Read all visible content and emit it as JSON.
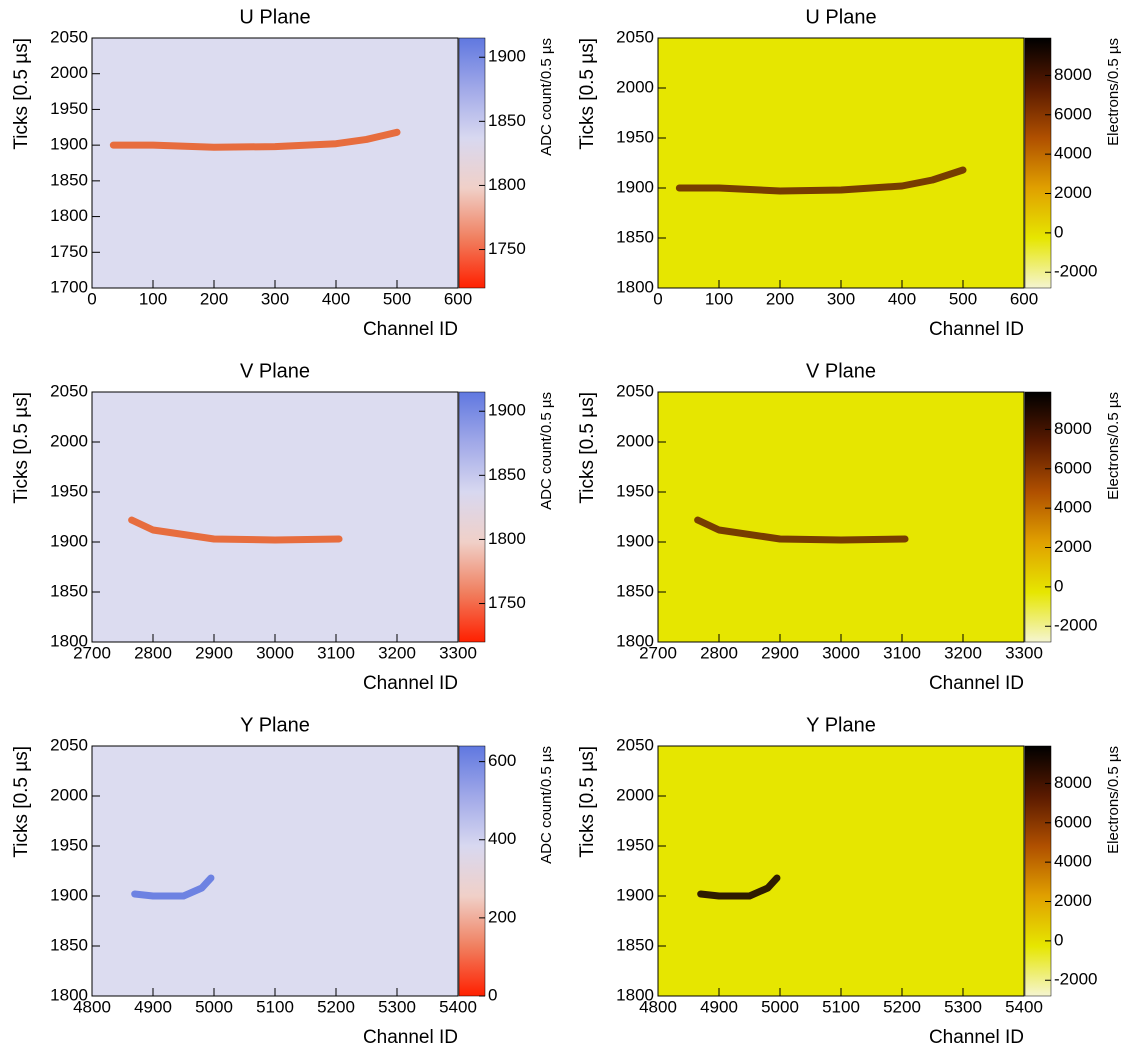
{
  "chart_data": [
    {
      "type": "heatmap",
      "title": "U Plane",
      "xlabel": "Channel ID",
      "ylabel": "Ticks [0.5 µs]",
      "zlabel": "ADC count/0.5 µs",
      "xlim": [
        0,
        600
      ],
      "xticks": [
        0,
        100,
        200,
        300,
        400,
        500,
        600
      ],
      "ylim": [
        1700,
        2050
      ],
      "yticks": [
        1700,
        1750,
        1800,
        1850,
        1900,
        1950,
        2000,
        2050
      ],
      "zlim": [
        1720,
        1915
      ],
      "zticks": [
        1750,
        1800,
        1850,
        1900
      ],
      "colorscale": [
        "#ff2000",
        "#f08060",
        "#f0d0c8",
        "#d8d8f0",
        "#a0a8e8",
        "#6078e0"
      ],
      "background": "#dcdcf0",
      "track": {
        "color": "#e8602a",
        "x": [
          35,
          100,
          200,
          300,
          400,
          450,
          500
        ],
        "y": [
          1900,
          1900,
          1897,
          1898,
          1902,
          1908,
          1918
        ]
      }
    },
    {
      "type": "heatmap",
      "title": "U Plane",
      "xlabel": "Channel ID",
      "ylabel": "Ticks [0.5 µs]",
      "zlabel": "Electrons/0.5 µs",
      "xlim": [
        0,
        600
      ],
      "xticks": [
        0,
        100,
        200,
        300,
        400,
        500,
        600
      ],
      "ylim": [
        1800,
        2050
      ],
      "yticks": [
        1800,
        1850,
        1900,
        1950,
        2000,
        2050
      ],
      "zlim": [
        -2800,
        9900
      ],
      "zticks": [
        -2000,
        0,
        2000,
        4000,
        6000,
        8000
      ],
      "colorscale": [
        "#f5f5d0",
        "#e6e600",
        "#e0a000",
        "#b05000",
        "#5a1a00",
        "#000000"
      ],
      "background": "#e6e600",
      "track": {
        "color": "#6a2a00",
        "x": [
          35,
          100,
          200,
          300,
          400,
          450,
          500
        ],
        "y": [
          1900,
          1900,
          1897,
          1898,
          1902,
          1908,
          1918
        ]
      }
    },
    {
      "type": "heatmap",
      "title": "V Plane",
      "xlabel": "Channel ID",
      "ylabel": "Ticks [0.5 µs]",
      "zlabel": "ADC count/0.5 µs",
      "xlim": [
        2700,
        3300
      ],
      "xticks": [
        2700,
        2800,
        2900,
        3000,
        3100,
        3200,
        3300
      ],
      "ylim": [
        1800,
        2050
      ],
      "yticks": [
        1800,
        1850,
        1900,
        1950,
        2000,
        2050
      ],
      "zlim": [
        1720,
        1915
      ],
      "zticks": [
        1750,
        1800,
        1850,
        1900
      ],
      "colorscale": [
        "#ff2000",
        "#f08060",
        "#f0d0c8",
        "#d8d8f0",
        "#a0a8e8",
        "#6078e0"
      ],
      "background": "#dcdcf0",
      "track": {
        "color": "#e8602a",
        "x": [
          2765,
          2800,
          2900,
          3000,
          3105
        ],
        "y": [
          1922,
          1912,
          1903,
          1902,
          1903
        ]
      }
    },
    {
      "type": "heatmap",
      "title": "V Plane",
      "xlabel": "Channel ID",
      "ylabel": "Ticks [0.5 µs]",
      "zlabel": "Electrons/0.5 µs",
      "xlim": [
        2700,
        3300
      ],
      "xticks": [
        2700,
        2800,
        2900,
        3000,
        3100,
        3200,
        3300
      ],
      "ylim": [
        1800,
        2050
      ],
      "yticks": [
        1800,
        1850,
        1900,
        1950,
        2000,
        2050
      ],
      "zlim": [
        -2800,
        9900
      ],
      "zticks": [
        -2000,
        0,
        2000,
        4000,
        6000,
        8000
      ],
      "colorscale": [
        "#f5f5d0",
        "#e6e600",
        "#e0a000",
        "#b05000",
        "#5a1a00",
        "#000000"
      ],
      "background": "#e6e600",
      "track": {
        "color": "#6a2a00",
        "x": [
          2765,
          2800,
          2900,
          3000,
          3105
        ],
        "y": [
          1922,
          1912,
          1903,
          1902,
          1903
        ]
      }
    },
    {
      "type": "heatmap",
      "title": "Y Plane",
      "xlabel": "Channel ID",
      "ylabel": "Ticks [0.5 µs]",
      "zlabel": "ADC count/0.5 µs",
      "xlim": [
        4800,
        5400
      ],
      "xticks": [
        4800,
        4900,
        5000,
        5100,
        5200,
        5300,
        5400
      ],
      "ylim": [
        1800,
        2050
      ],
      "yticks": [
        1800,
        1850,
        1900,
        1950,
        2000,
        2050
      ],
      "zlim": [
        0,
        640
      ],
      "zticks": [
        0,
        200,
        400,
        600
      ],
      "colorscale": [
        "#ff2000",
        "#f08060",
        "#f0d0c8",
        "#d8d8f0",
        "#a0a8e8",
        "#6078e0"
      ],
      "background": "#dcdcf0",
      "track": {
        "color": "#6078e0",
        "x": [
          4870,
          4900,
          4950,
          4980,
          4995
        ],
        "y": [
          1902,
          1900,
          1900,
          1908,
          1918
        ]
      }
    },
    {
      "type": "heatmap",
      "title": "Y Plane",
      "xlabel": "Channel ID",
      "ylabel": "Ticks [0.5 µs]",
      "zlabel": "Electrons/0.5 µs",
      "xlim": [
        4800,
        5400
      ],
      "xticks": [
        4800,
        4900,
        5000,
        5100,
        5200,
        5300,
        5400
      ],
      "ylim": [
        1800,
        2050
      ],
      "yticks": [
        1800,
        1850,
        1900,
        1950,
        2000,
        2050
      ],
      "zlim": [
        -2800,
        9900
      ],
      "zticks": [
        -2000,
        0,
        2000,
        4000,
        6000,
        8000
      ],
      "colorscale": [
        "#f5f5d0",
        "#e6e600",
        "#e0a000",
        "#b05000",
        "#5a1a00",
        "#000000"
      ],
      "background": "#e6e600",
      "track": {
        "color": "#1a0500",
        "x": [
          4870,
          4900,
          4950,
          4980,
          4995
        ],
        "y": [
          1902,
          1900,
          1900,
          1908,
          1918
        ]
      }
    }
  ]
}
